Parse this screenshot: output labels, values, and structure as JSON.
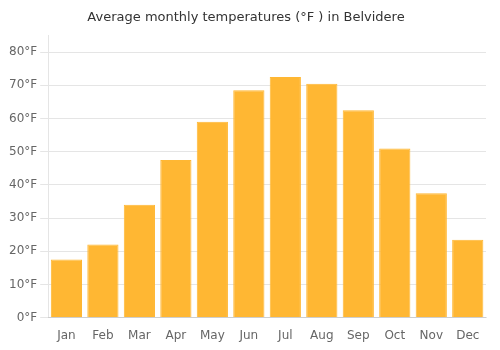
{
  "chart_data": {
    "type": "bar",
    "title": "Average monthly temperatures (°F ) in Belvidere",
    "categories": [
      "Jan",
      "Feb",
      "Mar",
      "Apr",
      "May",
      "Jun",
      "Jul",
      "Aug",
      "Sep",
      "Oct",
      "Nov",
      "Dec"
    ],
    "values": [
      17.5,
      22.0,
      34.0,
      47.5,
      59.0,
      68.5,
      72.5,
      70.5,
      62.5,
      51.0,
      37.5,
      23.5
    ],
    "color": "#FFB733",
    "ylim": [
      0,
      85
    ],
    "yticks": [
      {
        "value": 0,
        "label": "0°F"
      },
      {
        "value": 10,
        "label": "10°F"
      },
      {
        "value": 20,
        "label": "20°F"
      },
      {
        "value": 30,
        "label": "30°F"
      },
      {
        "value": 40,
        "label": "40°F"
      },
      {
        "value": 50,
        "label": "50°F"
      },
      {
        "value": 60,
        "label": "60°F"
      },
      {
        "value": 70,
        "label": "70°F"
      },
      {
        "value": 80,
        "label": "80°F"
      }
    ],
    "grid": true
  }
}
